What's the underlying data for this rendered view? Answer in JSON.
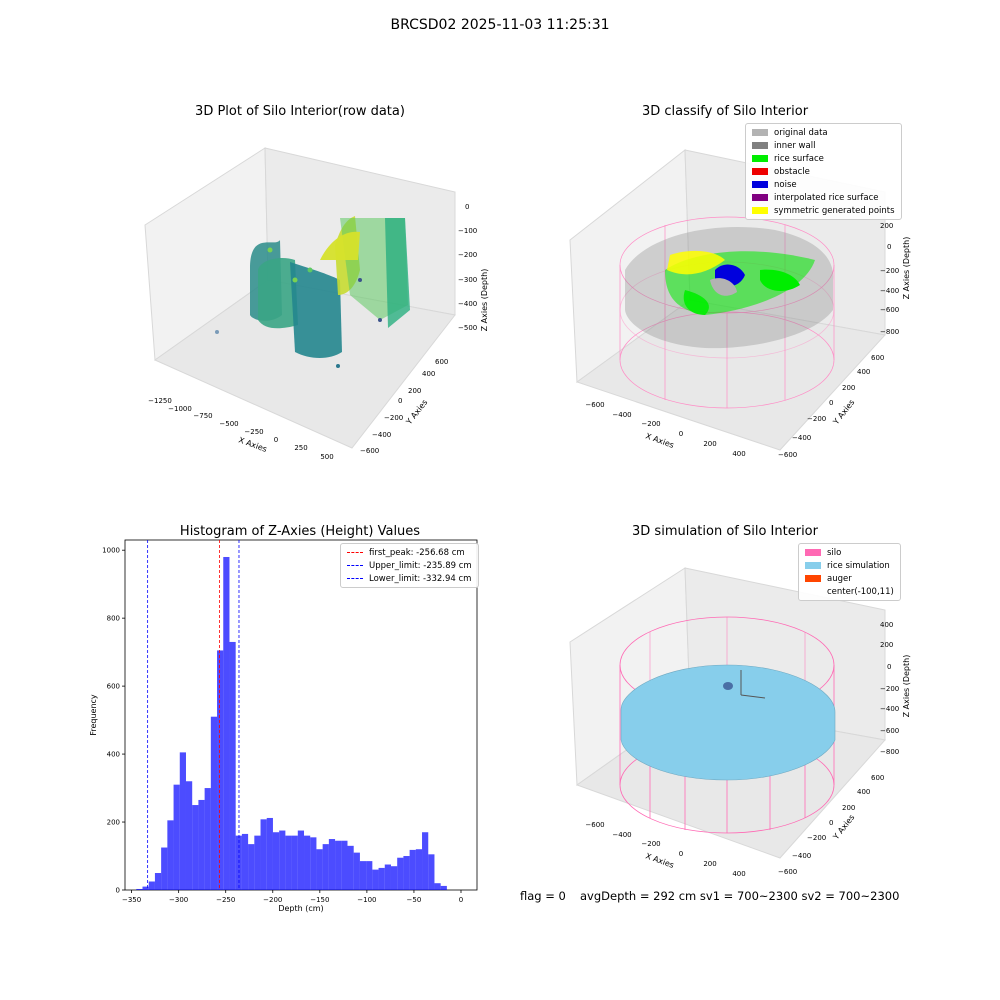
{
  "suptitle": "BRCSD02 2025-11-03 11:25:31",
  "panel1": {
    "title": "3D Plot of Silo Interior(row data)",
    "x_label": "X Axies",
    "y_label": "Y Axies",
    "z_label": "Z Axies (Depth)",
    "x_ticks": [
      "−1250",
      "−1000",
      "−750",
      "−500",
      "−250",
      "0",
      "250",
      "500"
    ],
    "y_ticks": [
      "−600",
      "−400",
      "−200",
      "0",
      "200",
      "400",
      "600"
    ],
    "z_ticks": [
      "0",
      "−100",
      "−200",
      "−300",
      "−400",
      "−500"
    ]
  },
  "panel2": {
    "title": "3D classify of Silo Interior",
    "x_label": "X Axies",
    "y_label": "Y Axies",
    "z_label": "Z Axies (Depth)",
    "x_ticks": [
      "−600",
      "−400",
      "−200",
      "0",
      "200",
      "400"
    ],
    "y_ticks": [
      "−600",
      "−400",
      "−200",
      "0",
      "200",
      "400",
      "600"
    ],
    "z_ticks": [
      "200",
      "0",
      "−200",
      "−400",
      "−600",
      "−800"
    ],
    "legend": [
      {
        "label": "original data",
        "color": "#b3b3b3"
      },
      {
        "label": "inner wall",
        "color": "#808080"
      },
      {
        "label": "rice surface",
        "color": "#00ee00"
      },
      {
        "label": "obstacle",
        "color": "#ee0000"
      },
      {
        "label": "noise",
        "color": "#0000dd"
      },
      {
        "label": "interpolated rice surface",
        "color": "#800080"
      },
      {
        "label": "symmetric generated points",
        "color": "#ffff00"
      }
    ]
  },
  "panel4": {
    "title": "3D simulation of Silo Interior",
    "x_label": "X Axies",
    "y_label": "Y Axies",
    "z_label": "Z Axies (Depth)",
    "x_ticks": [
      "−600",
      "−400",
      "−200",
      "0",
      "200",
      "400"
    ],
    "y_ticks": [
      "−600",
      "−400",
      "−200",
      "0",
      "200",
      "400",
      "600"
    ],
    "z_ticks": [
      "400",
      "200",
      "0",
      "−200",
      "−400",
      "−600",
      "−800"
    ],
    "legend": [
      {
        "label": "silo",
        "color": "#ff69b4"
      },
      {
        "label": "rice simulation",
        "color": "#87ceeb"
      },
      {
        "label": "auger",
        "color": "#ff4500"
      },
      {
        "label": "center(-100,11)",
        "color": ""
      }
    ]
  },
  "footer": {
    "flag": "flag = 0",
    "stats": "avgDepth = 292 cm  sv1 = 700~2300  sv2 = 700~2300"
  },
  "chart_data": [
    {
      "type": "histogram",
      "title": "Histogram of Z-Axies (Height) Values",
      "xlabel": "Depth (cm)",
      "ylabel": "Frequency",
      "xlim": [
        -357,
        17
      ],
      "ylim": [
        0,
        1030
      ],
      "x_ticks": [
        -350,
        -300,
        -250,
        -200,
        -150,
        -100,
        -50,
        0
      ],
      "y_ticks": [
        0,
        200,
        400,
        600,
        800,
        1000
      ],
      "bar_color": "#0000ff",
      "bin_start": -345,
      "bin_width": 6.6,
      "values": [
        3,
        10,
        25,
        50,
        125,
        205,
        310,
        405,
        320,
        250,
        265,
        300,
        510,
        705,
        980,
        730,
        160,
        165,
        135,
        160,
        208,
        212,
        170,
        175,
        160,
        160,
        175,
        160,
        155,
        120,
        135,
        150,
        145,
        145,
        130,
        110,
        85,
        85,
        60,
        65,
        75,
        70,
        95,
        100,
        118,
        120,
        170,
        105,
        20,
        12
      ],
      "vlines": [
        {
          "label": "first_peak: -256.68 cm",
          "x": -256.68,
          "color": "#ff0000"
        },
        {
          "label": "Upper_limit: -235.89 cm",
          "x": -235.89,
          "color": "#0000ff"
        },
        {
          "label": "Lower_limit: -332.94 cm",
          "x": -332.94,
          "color": "#0000ff"
        }
      ]
    }
  ]
}
